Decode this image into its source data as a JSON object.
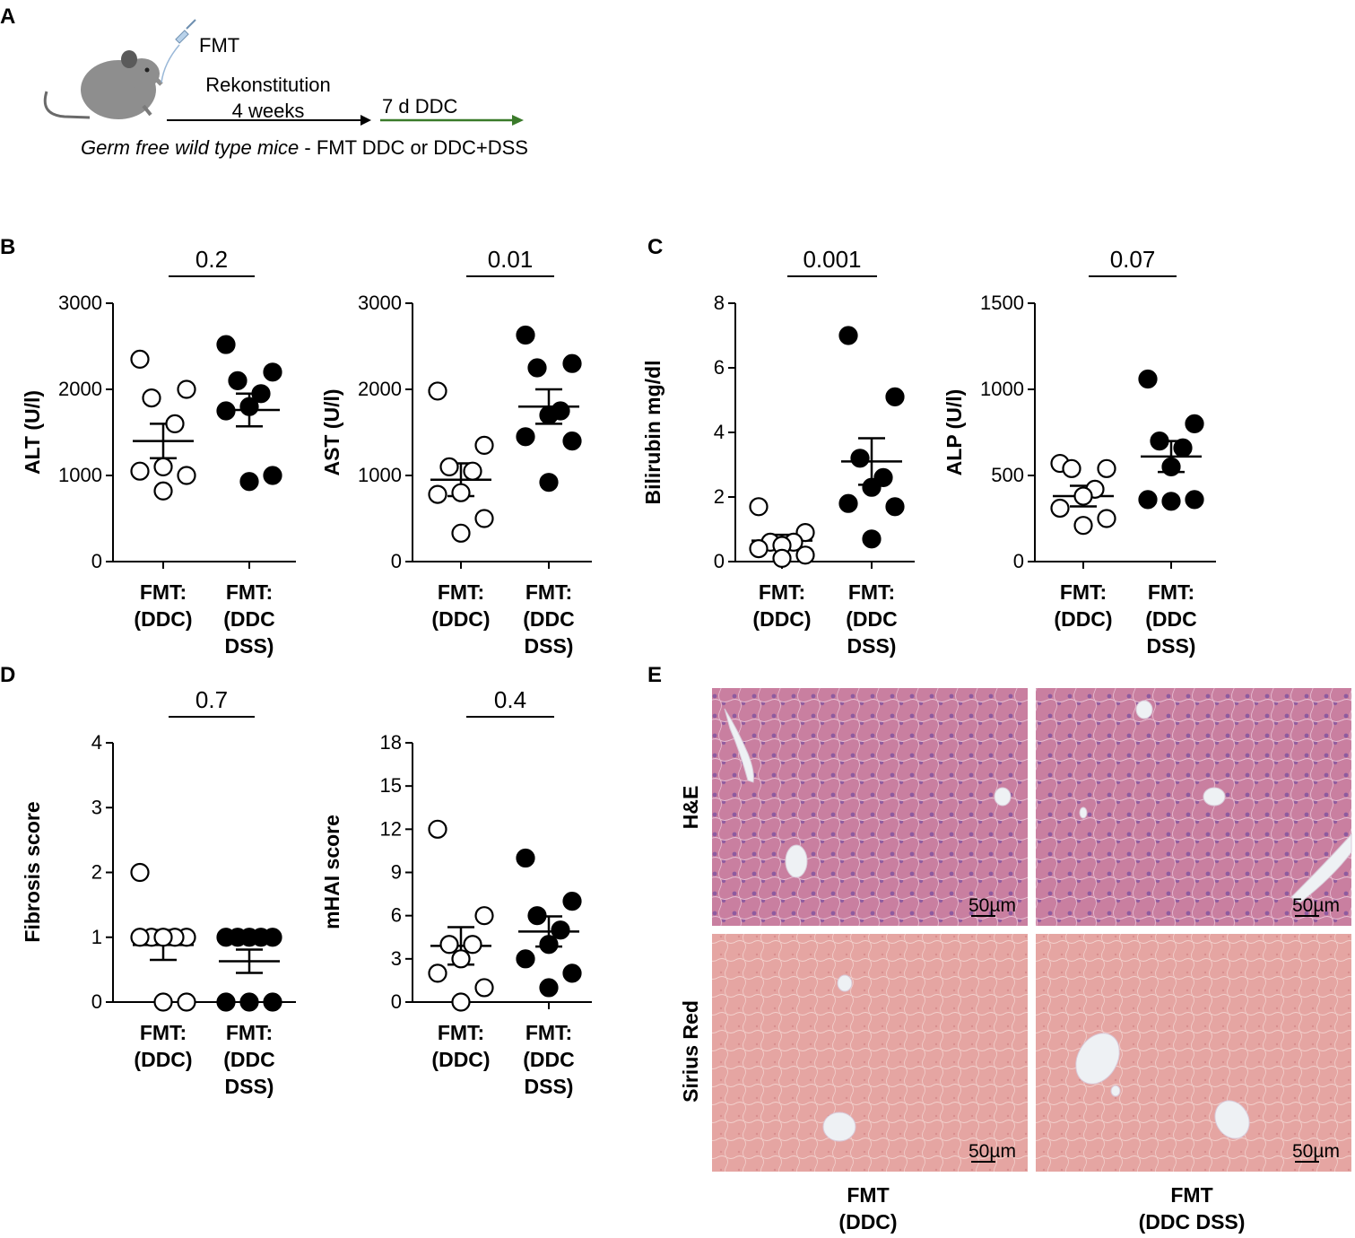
{
  "panels": {
    "A": "A",
    "B": "B",
    "C": "C",
    "D": "D",
    "E": "E"
  },
  "schema": {
    "fmt_label": "FMT",
    "arrow1_label_line1": "Rekonstitution",
    "arrow1_label_line2": "4 weeks",
    "arrow2_label": "7 d DDC",
    "caption_italic": "Germ free wild type mice",
    "caption_rest": " - FMT DDC or DDC+DSS",
    "arrow2_color": "#3a7a2a"
  },
  "categories": [
    [
      "FMT:",
      "(DDC)"
    ],
    [
      "FMT:",
      "(DDC",
      "DSS)"
    ]
  ],
  "chart_data": [
    {
      "type": "scatter",
      "panel": "B",
      "ylabel": "ALT (U/l)",
      "ylim": [
        0,
        3000
      ],
      "yticks": [
        0,
        1000,
        2000,
        3000
      ],
      "pvalue": "0.2",
      "series": [
        {
          "name": "FMT: (DDC)",
          "filled": false,
          "points": [
            2350,
            2000,
            1900,
            1600,
            1100,
            1050,
            1000,
            820
          ],
          "mean": 1400,
          "sem": 200
        },
        {
          "name": "FMT: (DDC DSS)",
          "filled": true,
          "points": [
            2520,
            2200,
            2100,
            1950,
            1800,
            1750,
            1000,
            930
          ],
          "mean": 1760,
          "sem": 190
        }
      ]
    },
    {
      "type": "scatter",
      "panel": "B",
      "ylabel": "AST (U/l)",
      "ylim": [
        0,
        3000
      ],
      "yticks": [
        0,
        1000,
        2000,
        3000
      ],
      "pvalue": "0.01",
      "series": [
        {
          "name": "FMT: (DDC)",
          "filled": false,
          "points": [
            1980,
            1350,
            1100,
            1050,
            800,
            780,
            500,
            330
          ],
          "mean": 950,
          "sem": 190
        },
        {
          "name": "FMT: (DDC DSS)",
          "filled": true,
          "points": [
            2630,
            2300,
            2250,
            1750,
            1700,
            1450,
            1400,
            920
          ],
          "mean": 1800,
          "sem": 200
        }
      ]
    },
    {
      "type": "scatter",
      "panel": "C",
      "ylabel": "Bilirubin  mg/dl",
      "ylim": [
        0,
        8
      ],
      "yticks": [
        0,
        2,
        4,
        6,
        8
      ],
      "pvalue": "0.001",
      "series": [
        {
          "name": "FMT: (DDC)",
          "filled": false,
          "points": [
            1.7,
            0.9,
            0.6,
            0.6,
            0.5,
            0.4,
            0.2,
            0.1
          ],
          "mean": 0.65,
          "sem": 0.18
        },
        {
          "name": "FMT: (DDC DSS)",
          "filled": true,
          "points": [
            7.0,
            5.1,
            3.2,
            2.6,
            2.3,
            1.8,
            1.7,
            0.7
          ],
          "mean": 3.1,
          "sem": 0.72
        }
      ]
    },
    {
      "type": "scatter",
      "panel": "C",
      "ylabel": "ALP (U/l)",
      "ylim": [
        0,
        1500
      ],
      "yticks": [
        0,
        500,
        1000,
        1500
      ],
      "pvalue": "0.07",
      "series": [
        {
          "name": "FMT: (DDC)",
          "filled": false,
          "points": [
            570,
            540,
            540,
            420,
            380,
            310,
            250,
            210
          ],
          "mean": 380,
          "sem": 60
        },
        {
          "name": "FMT: (DDC DSS)",
          "filled": true,
          "points": [
            1060,
            800,
            700,
            660,
            550,
            360,
            360,
            350
          ],
          "mean": 610,
          "sem": 90
        }
      ]
    },
    {
      "type": "scatter",
      "panel": "D",
      "ylabel": "Fibrosis score",
      "ylim": [
        0,
        4
      ],
      "yticks": [
        0,
        1,
        2,
        3,
        4
      ],
      "pvalue": "0.7",
      "series": [
        {
          "name": "FMT: (DDC)",
          "filled": false,
          "points": [
            2,
            1,
            1,
            1,
            1,
            1,
            0,
            0
          ],
          "mean": 0.88,
          "sem": 0.23
        },
        {
          "name": "FMT: (DDC DSS)",
          "filled": true,
          "points": [
            1,
            1,
            1,
            1,
            1,
            0,
            0,
            0
          ],
          "mean": 0.63,
          "sem": 0.18
        }
      ]
    },
    {
      "type": "scatter",
      "panel": "D",
      "ylabel": "mHAI score",
      "ylim": [
        0,
        18
      ],
      "yticks": [
        0,
        3,
        6,
        9,
        12,
        15,
        18
      ],
      "pvalue": "0.4",
      "series": [
        {
          "name": "FMT: (DDC)",
          "filled": false,
          "points": [
            12,
            6,
            4,
            4,
            3,
            2,
            1,
            0
          ],
          "mean": 3.9,
          "sem": 1.3
        },
        {
          "name": "FMT: (DDC DSS)",
          "filled": true,
          "points": [
            10,
            7,
            6,
            5,
            4,
            3,
            2,
            1
          ],
          "mean": 4.9,
          "sem": 1.05
        }
      ]
    }
  ],
  "histology": {
    "row_labels": [
      "H&E",
      "Sirius Red"
    ],
    "scale_bar": "50µm",
    "col_labels": [
      [
        "FMT",
        "(DDC)"
      ],
      [
        "FMT",
        "(DDC DSS)"
      ]
    ],
    "he_color": "#c47a9a",
    "sr_color": "#e2a4a0"
  }
}
